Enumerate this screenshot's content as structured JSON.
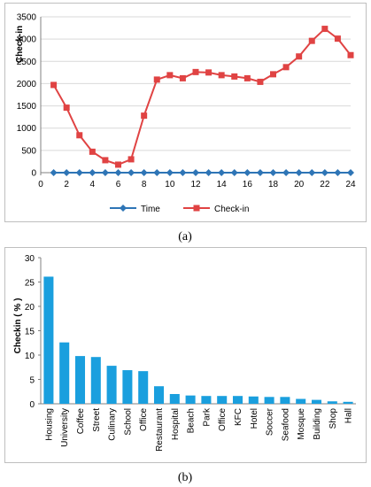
{
  "chart_data": [
    {
      "type": "line",
      "ylabel": "Check-in",
      "x": [
        1,
        2,
        3,
        4,
        5,
        6,
        7,
        8,
        9,
        10,
        11,
        12,
        13,
        14,
        15,
        16,
        17,
        18,
        19,
        20,
        21,
        22,
        23,
        24
      ],
      "xticks": [
        "0",
        "2",
        "4",
        "6",
        "8",
        "10",
        "12",
        "14",
        "16",
        "18",
        "20",
        "22",
        "24"
      ],
      "yticks": [
        "0",
        "500",
        "1000",
        "1500",
        "2000",
        "2500",
        "3000",
        "3500"
      ],
      "xlim": [
        0,
        24
      ],
      "ylim": [
        0,
        3500
      ],
      "legend_position": "bottom",
      "series": [
        {
          "name": "Time",
          "color": "#2e75b6",
          "marker": "diamond",
          "values": [
            0,
            0,
            0,
            0,
            0,
            0,
            0,
            0,
            0,
            0,
            0,
            0,
            0,
            0,
            0,
            0,
            0,
            0,
            0,
            0,
            0,
            0,
            0,
            0
          ]
        },
        {
          "name": "Check-in",
          "color": "#e04343",
          "marker": "square",
          "values": [
            1970,
            1460,
            840,
            470,
            280,
            180,
            300,
            1280,
            2090,
            2190,
            2120,
            2260,
            2250,
            2190,
            2160,
            2120,
            2040,
            2210,
            2370,
            2610,
            2960,
            3230,
            3010,
            2640
          ]
        }
      ],
      "caption": "(a)"
    },
    {
      "type": "bar",
      "ylabel": "Checkin ( % )",
      "ylim": [
        0,
        30
      ],
      "yticks": [
        "0",
        "5",
        "10",
        "15",
        "20",
        "25",
        "30"
      ],
      "color": "#1a9fde",
      "categories": [
        "Housing",
        "University",
        "Coffee",
        "Street",
        "Culinary",
        "School",
        "Office",
        "Restaurant",
        "Hospital",
        "Beach",
        "Park",
        "Office",
        "KFC",
        "Hotel",
        "Soccer",
        "Seafood",
        "Mosque",
        "Building",
        "Shop",
        "Hall"
      ],
      "values": [
        26.1,
        12.6,
        9.8,
        9.6,
        7.8,
        6.9,
        6.7,
        3.6,
        2.0,
        1.7,
        1.6,
        1.6,
        1.6,
        1.5,
        1.4,
        1.4,
        1.0,
        0.8,
        0.5,
        0.4
      ],
      "caption": "(b)"
    }
  ]
}
